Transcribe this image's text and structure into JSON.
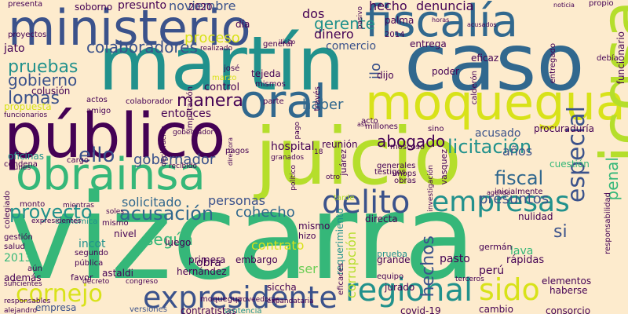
{
  "wordcloud": {
    "palette": {
      "background": "#fdebcd",
      "dark_purple": "#440154",
      "indigo": "#3b528b",
      "blue": "#31688e",
      "teal": "#21918c",
      "green": "#35b779",
      "light_green": "#6ece58",
      "lime": "#b5de2b",
      "yellow": "#d8e219",
      "gray": "#8a8a8a"
    },
    "words": [
      {
        "text": "vizcarra",
        "color": "#35b779"
      },
      {
        "text": "juicio",
        "color": "#b5de2b"
      },
      {
        "text": "caso",
        "color": "#31688e"
      },
      {
        "text": "martín",
        "color": "#21918c"
      },
      {
        "text": "público",
        "color": "#440154"
      },
      {
        "text": "moquegua",
        "color": "#d8e219"
      },
      {
        "text": "fiscalía",
        "color": "#31688e"
      },
      {
        "text": "ministerio",
        "color": "#3b528b"
      },
      {
        "text": "icgsa",
        "color": "#b5de2b"
      },
      {
        "text": "obrainsa",
        "color": "#35b779"
      },
      {
        "text": "oral",
        "color": "#31688e"
      },
      {
        "text": "expresidente",
        "color": "#3b528b"
      },
      {
        "text": "delito",
        "color": "#3b528b"
      },
      {
        "text": "regional",
        "color": "#21918c"
      },
      {
        "text": "sido",
        "color": "#d8e219"
      },
      {
        "text": "empresas",
        "color": "#21918c"
      },
      {
        "text": "cornejo",
        "color": "#d8e219"
      },
      {
        "text": "especial",
        "color": "#3b528b"
      },
      {
        "text": "acusación",
        "color": "#31688e"
      },
      {
        "text": "proyecto",
        "color": "#21918c"
      },
      {
        "text": "licitación",
        "color": "#21918c"
      },
      {
        "text": "ello",
        "color": "#3b528b"
      },
      {
        "text": "pruebas",
        "color": "#21918c"
      },
      {
        "text": "manera",
        "color": "#440154"
      },
      {
        "text": "lomas",
        "color": "#3b528b"
      },
      {
        "text": "fiscal",
        "color": "#31688e"
      },
      {
        "text": "colaboradores",
        "color": "#3b528b"
      },
      {
        "text": "gobierno",
        "color": "#3b528b"
      },
      {
        "text": "abogado",
        "color": "#440154"
      },
      {
        "text": "si",
        "color": "#3b528b"
      },
      {
        "text": "hechos",
        "color": "#3b528b"
      },
      {
        "text": "penal",
        "color": "#35b779"
      },
      {
        "text": "gobernador",
        "color": "#3b528b"
      },
      {
        "text": "cohecho",
        "color": "#31688e"
      },
      {
        "text": "gerente",
        "color": "#21918c"
      },
      {
        "text": "proceso",
        "color": "#d8e219"
      },
      {
        "text": "presuntos",
        "color": "#3b528b"
      },
      {
        "text": "según",
        "color": "#35b779"
      },
      {
        "text": "haber",
        "color": "#31688e"
      },
      {
        "text": "hecho",
        "color": "#440154"
      },
      {
        "text": "denuncia",
        "color": "#440154"
      },
      {
        "text": "noviembre",
        "color": "#3b528b"
      },
      {
        "text": "presunto",
        "color": "#440154"
      },
      {
        "text": "dos",
        "color": "#440154"
      },
      {
        "text": "años",
        "color": "#3b528b"
      },
      {
        "text": "dinero",
        "color": "#440154"
      },
      {
        "text": "comercio",
        "color": "#3b528b"
      },
      {
        "text": "ilo",
        "color": "#3b528b"
      },
      {
        "text": "solicitado",
        "color": "#31688e"
      },
      {
        "text": "hospital",
        "color": "#440154"
      },
      {
        "text": "personas",
        "color": "#3b528b"
      },
      {
        "text": "corrupción",
        "color": "#b5de2b"
      },
      {
        "text": "requerimiento",
        "color": "#21918c"
      },
      {
        "text": "mismo",
        "color": "#440154"
      },
      {
        "text": "contrato",
        "color": "#d8e219"
      },
      {
        "text": "incot",
        "color": "#21918c"
      },
      {
        "text": "2013",
        "color": "#35b779"
      },
      {
        "text": "ser",
        "color": "#6ece58"
      },
      {
        "text": "entonces",
        "color": "#440154"
      },
      {
        "text": "acusado",
        "color": "#3b528b"
      },
      {
        "text": "procuraduría",
        "color": "#440154"
      },
      {
        "text": "tejeda",
        "color": "#440154"
      },
      {
        "text": "mismos",
        "color": "#440154"
      },
      {
        "text": "control",
        "color": "#440154"
      },
      {
        "text": "colusión",
        "color": "#440154"
      },
      {
        "text": "jato",
        "color": "#440154"
      },
      {
        "text": "soborno",
        "color": "#440154"
      },
      {
        "text": "palma",
        "color": "#440154"
      },
      {
        "text": "2020",
        "color": "#440154"
      },
      {
        "text": "funcionario",
        "color": "#440154"
      },
      {
        "text": "propio",
        "color": "#440154"
      },
      {
        "text": "cuestión",
        "color": "#35b779"
      },
      {
        "text": "obra",
        "color": "#440154"
      },
      {
        "text": "contratistas",
        "color": "#440154"
      },
      {
        "text": "hernández",
        "color": "#440154"
      },
      {
        "text": "embargo",
        "color": "#440154"
      },
      {
        "text": "primera",
        "color": "#440154"
      },
      {
        "text": "pasto",
        "color": "#440154"
      },
      {
        "text": "lava",
        "color": "#35b779"
      },
      {
        "text": "rápidas",
        "color": "#440154"
      },
      {
        "text": "elementos",
        "color": "#440154"
      },
      {
        "text": "haberse",
        "color": "#440154"
      },
      {
        "text": "consorcio",
        "color": "#440154"
      },
      {
        "text": "cambio",
        "color": "#440154"
      },
      {
        "text": "covid-19",
        "color": "#440154"
      },
      {
        "text": "sentencia",
        "color": "#21918c"
      },
      {
        "text": "empresa",
        "color": "#3b528b"
      },
      {
        "text": "versiones",
        "color": "#3b528b"
      },
      {
        "text": "además",
        "color": "#440154"
      },
      {
        "text": "favor",
        "color": "#440154"
      },
      {
        "text": "nulidad",
        "color": "#440154"
      },
      {
        "text": "directa",
        "color": "#440154"
      },
      {
        "text": "grande",
        "color": "#440154"
      },
      {
        "text": "jurado",
        "color": "#440154"
      },
      {
        "text": "perú",
        "color": "#440154"
      },
      {
        "text": "prueba",
        "color": "#21918c"
      },
      {
        "text": "tarde",
        "color": "#b5de2b"
      },
      {
        "text": "luego",
        "color": "#440154"
      },
      {
        "text": "nivel",
        "color": "#440154"
      },
      {
        "text": "astaldi",
        "color": "#440154"
      },
      {
        "text": "siccha",
        "color": "#440154"
      },
      {
        "text": "hizo",
        "color": "#440154"
      },
      {
        "text": "monto",
        "color": "#440154"
      },
      {
        "text": "económica",
        "color": "#21918c"
      },
      {
        "text": "segundo",
        "color": "#440154"
      },
      {
        "text": "pública",
        "color": "#440154"
      },
      {
        "text": "mismo",
        "color": "#440154"
      },
      {
        "text": "gestión",
        "color": "#440154"
      },
      {
        "text": "salud",
        "color": "#440154"
      },
      {
        "text": "oficinas",
        "color": "#21918c"
      },
      {
        "text": "cargo",
        "color": "#440154"
      },
      {
        "text": "colegiado",
        "color": "#440154"
      },
      {
        "text": "expresidentes",
        "color": "#440154"
      },
      {
        "text": "reunión",
        "color": "#440154"
      },
      {
        "text": "testigos",
        "color": "#440154"
      },
      {
        "text": "moscoso",
        "color": "#440154"
      },
      {
        "text": "millones",
        "color": "#440154"
      },
      {
        "text": "generales",
        "color": "#440154"
      },
      {
        "text": "unops",
        "color": "#440154"
      },
      {
        "text": "obras",
        "color": "#440154"
      },
      {
        "text": "presenta",
        "color": "#440154"
      },
      {
        "text": "proyectos",
        "color": "#440154"
      },
      {
        "text": "colaborador",
        "color": "#440154"
      },
      {
        "text": "amigo",
        "color": "#440154"
      },
      {
        "text": "actos",
        "color": "#440154"
      },
      {
        "text": "general",
        "color": "#440154"
      },
      {
        "text": "realizado",
        "color": "#440154"
      },
      {
        "text": "imputación",
        "color": "#440154"
      },
      {
        "text": "josé",
        "color": "#440154"
      },
      {
        "text": "marzo",
        "color": "#d8e219"
      },
      {
        "text": "pagos",
        "color": "#440154"
      },
      {
        "text": "entrega",
        "color": "#440154"
      },
      {
        "text": "poder",
        "color": "#440154"
      },
      {
        "text": "eficaz",
        "color": "#440154"
      },
      {
        "text": "dijo",
        "color": "#440154"
      },
      {
        "text": "2014",
        "color": "#440154"
      },
      {
        "text": "día",
        "color": "#440154"
      },
      {
        "text": "través",
        "color": "#440154"
      },
      {
        "text": "parte",
        "color": "#440154"
      },
      {
        "text": "acto",
        "color": "#440154"
      },
      {
        "text": "calderón",
        "color": "#440154"
      },
      {
        "text": "debía",
        "color": "#440154"
      },
      {
        "text": "entregado",
        "color": "#440154"
      },
      {
        "text": "funcionarios",
        "color": "#440154"
      },
      {
        "text": "propuesta",
        "color": "#d8e219"
      },
      {
        "text": "condena",
        "color": "#440154"
      },
      {
        "text": "lunes",
        "color": "#440154"
      },
      {
        "text": "recibido",
        "color": "#440154"
      },
      {
        "text": "juárez",
        "color": "#440154"
      },
      {
        "text": "vasquez",
        "color": "#440154"
      },
      {
        "text": "investigación",
        "color": "#440154"
      },
      {
        "text": "inicialmente",
        "color": "#440154"
      },
      {
        "text": "agenda",
        "color": "#440154"
      },
      {
        "text": "responsabilidad",
        "color": "#440154"
      },
      {
        "text": "germán",
        "color": "#440154"
      },
      {
        "text": "equipo",
        "color": "#440154"
      },
      {
        "text": "terceros",
        "color": "#440154"
      },
      {
        "text": "eficaces",
        "color": "#440154"
      },
      {
        "text": "congreso",
        "color": "#440154"
      },
      {
        "text": "decreto",
        "color": "#440154"
      },
      {
        "text": "aún",
        "color": "#440154"
      },
      {
        "text": "suficientes",
        "color": "#440154"
      },
      {
        "text": "responsables",
        "color": "#440154"
      },
      {
        "text": "alejandro",
        "color": "#440154"
      },
      {
        "text": "proveedoras",
        "color": "#440154"
      },
      {
        "text": "expandataria",
        "color": "#440154"
      },
      {
        "text": "soles",
        "color": "#440154"
      },
      {
        "text": "mientras",
        "color": "#440154"
      },
      {
        "text": "moquegua",
        "color": "#440154"
      },
      {
        "text": "noticia",
        "color": "#440154"
      },
      {
        "text": "acusados",
        "color": "#440154"
      },
      {
        "text": "horas",
        "color": "#440154"
      },
      {
        "text": "pasivo",
        "color": "#440154"
      },
      {
        "text": "ilícito",
        "color": "#440154"
      },
      {
        "text": "granados",
        "color": "#440154"
      },
      {
        "text": "18",
        "color": "#440154"
      },
      {
        "text": "directora",
        "color": "#440154"
      },
      {
        "text": "gobernador",
        "color": "#440154"
      },
      {
        "text": "así",
        "color": "#440154"
      },
      {
        "text": "sino",
        "color": "#440154"
      },
      {
        "text": "pago",
        "color": "#440154"
      },
      {
        "text": "declaración",
        "color": "#440154"
      },
      {
        "text": "otro",
        "color": "#440154"
      },
      {
        "text": "político",
        "color": "#440154"
      }
    ]
  }
}
